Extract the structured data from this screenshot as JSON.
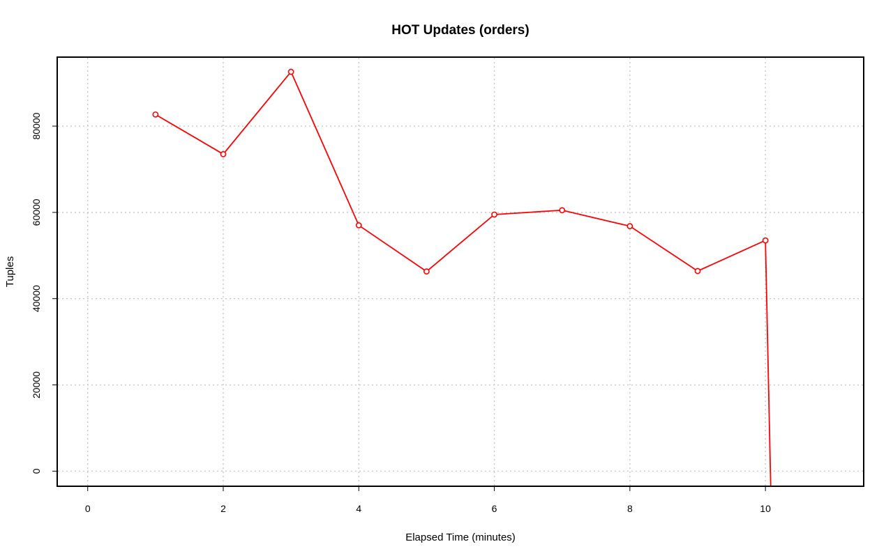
{
  "chart_data": {
    "type": "line",
    "title": "HOT Updates (orders)",
    "xlabel": "Elapsed Time (minutes)",
    "ylabel": "Tuples",
    "xlim": [
      -0.45,
      11.45
    ],
    "ylim": [
      -3500,
      96000
    ],
    "x_ticks": [
      0,
      2,
      4,
      6,
      8,
      10
    ],
    "y_ticks": [
      0,
      20000,
      40000,
      60000,
      80000
    ],
    "x_tick_labels": [
      "0",
      "2",
      "4",
      "6",
      "8",
      "10"
    ],
    "y_tick_labels": [
      "0",
      "20000",
      "40000",
      "60000",
      "80000"
    ],
    "grid": true,
    "series": [
      {
        "color": "#ff0000",
        "marker": "open-circle",
        "x": [
          1,
          2,
          3,
          4,
          5,
          6,
          7,
          8,
          9,
          10
        ],
        "values": [
          82700,
          73500,
          92600,
          57000,
          46300,
          59500,
          60500,
          56800,
          46400,
          53500
        ]
      }
    ],
    "tail": {
      "x": [
        10,
        10.08
      ],
      "values": [
        53500,
        -5000
      ]
    }
  }
}
